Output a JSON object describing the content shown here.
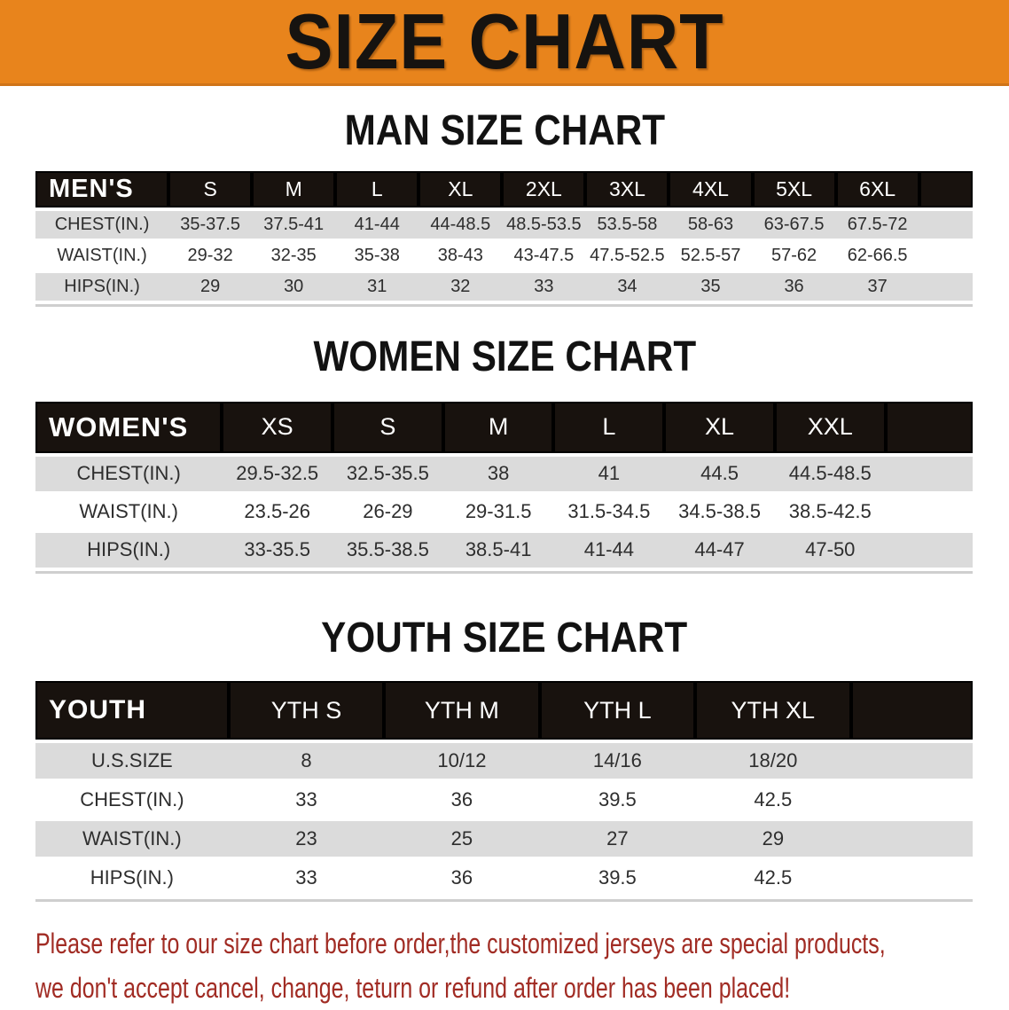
{
  "banner": {
    "title": "SIZE CHART",
    "bg_color": "#E8841C",
    "text_color": "#161310"
  },
  "men": {
    "heading": "MAN SIZE CHART",
    "header_label": "MEN'S",
    "sizes": [
      "S",
      "M",
      "L",
      "XL",
      "2XL",
      "3XL",
      "4XL",
      "5XL",
      "6XL"
    ],
    "rows": [
      {
        "label": "CHEST(IN.)",
        "values": [
          "35-37.5",
          "37.5-41",
          "41-44",
          "44-48.5",
          "48.5-53.5",
          "53.5-58",
          "58-63",
          "63-67.5",
          "67.5-72"
        ]
      },
      {
        "label": "WAIST(IN.)",
        "values": [
          "29-32",
          "32-35",
          "35-38",
          "38-43",
          "43-47.5",
          "47.5-52.5",
          "52.5-57",
          "57-62",
          "62-66.5"
        ]
      },
      {
        "label": "HIPS(IN.)",
        "values": [
          "29",
          "30",
          "31",
          "32",
          "33",
          "34",
          "35",
          "36",
          "37"
        ]
      }
    ]
  },
  "women": {
    "heading": "WOMEN SIZE CHART",
    "header_label": "WOMEN'S",
    "sizes": [
      "XS",
      "S",
      "M",
      "L",
      "XL",
      "XXL"
    ],
    "rows": [
      {
        "label": "CHEST(IN.)",
        "values": [
          "29.5-32.5",
          "32.5-35.5",
          "38",
          "41",
          "44.5",
          "44.5-48.5"
        ]
      },
      {
        "label": "WAIST(IN.)",
        "values": [
          "23.5-26",
          "26-29",
          "29-31.5",
          "31.5-34.5",
          "34.5-38.5",
          "38.5-42.5"
        ]
      },
      {
        "label": "HIPS(IN.)",
        "values": [
          "33-35.5",
          "35.5-38.5",
          "38.5-41",
          "41-44",
          "44-47",
          "47-50"
        ]
      }
    ]
  },
  "youth": {
    "heading": "YOUTH SIZE CHART",
    "header_label": "YOUTH",
    "sizes": [
      "YTH S",
      "YTH M",
      "YTH L",
      "YTH XL"
    ],
    "rows": [
      {
        "label": "U.S.SIZE",
        "values": [
          "8",
          "10/12",
          "14/16",
          "18/20"
        ]
      },
      {
        "label": "CHEST(IN.)",
        "values": [
          "33",
          "36",
          "39.5",
          "42.5"
        ]
      },
      {
        "label": "WAIST(IN.)",
        "values": [
          "23",
          "25",
          "27",
          "29"
        ]
      },
      {
        "label": "HIPS(IN.)",
        "values": [
          "33",
          "36",
          "39.5",
          "42.5"
        ]
      }
    ]
  },
  "footer_note": {
    "line1": "Please refer to our size chart before order,the customized jerseys are special products,",
    "line2": "we don't accept cancel, change, teturn or refund after order has been placed!",
    "color": "#A12C24"
  },
  "colors": {
    "header_row_bg": "#18120e",
    "header_row_text": "#ffffff",
    "stripe_row_bg": "#DBDBDB",
    "table_text": "#2e2e2e"
  }
}
